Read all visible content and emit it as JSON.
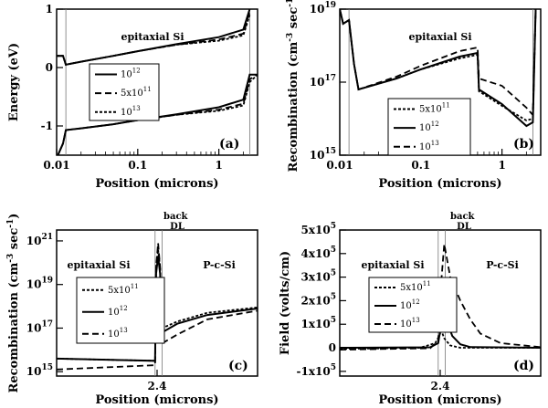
{
  "chart_data": [
    {
      "type": "line",
      "panel_label": "(a)",
      "xlabel": "Position (microns)",
      "ylabel": "Energy (eV)",
      "xscale": "log",
      "xlim": [
        0.01,
        3
      ],
      "ylim": [
        -1.5,
        1
      ],
      "x_ticks": [
        0.01,
        0.1,
        1
      ],
      "x_tick_labels": [
        "0.01",
        "0.1",
        "1"
      ],
      "y_ticks": [
        -1,
        0,
        1
      ],
      "y_tick_labels": [
        "-1",
        "0",
        "1"
      ],
      "annotations": [
        "epitaxial Si"
      ],
      "vlines": [
        0.013,
        2.4
      ],
      "legend": {
        "position": "center-left",
        "entries": [
          {
            "label_base": "10",
            "label_exp": "12",
            "style": "solid"
          },
          {
            "label_base": "5x10",
            "label_exp": "11",
            "style": "dashed"
          },
          {
            "label_base": "10",
            "label_exp": "13",
            "style": "dotted"
          }
        ]
      },
      "series": [
        {
          "name": "1e12 Ec",
          "style": "solid",
          "points": [
            [
              0.01,
              0.2
            ],
            [
              0.012,
              0.2
            ],
            [
              0.013,
              0.05
            ],
            [
              0.02,
              0.1
            ],
            [
              0.05,
              0.2
            ],
            [
              0.1,
              0.28
            ],
            [
              0.3,
              0.4
            ],
            [
              1,
              0.52
            ],
            [
              2,
              0.65
            ],
            [
              2.4,
              1.0
            ]
          ]
        },
        {
          "name": "5e11 Ec",
          "style": "dashed",
          "points": [
            [
              0.01,
              0.2
            ],
            [
              0.012,
              0.2
            ],
            [
              0.013,
              0.05
            ],
            [
              0.02,
              0.1
            ],
            [
              0.05,
              0.2
            ],
            [
              0.1,
              0.28
            ],
            [
              0.3,
              0.39
            ],
            [
              1,
              0.48
            ],
            [
              2,
              0.58
            ],
            [
              2.4,
              0.95
            ]
          ]
        },
        {
          "name": "1e13 Ec",
          "style": "dotted",
          "points": [
            [
              0.01,
              0.2
            ],
            [
              0.012,
              0.2
            ],
            [
              0.013,
              0.05
            ],
            [
              0.02,
              0.1
            ],
            [
              0.05,
              0.2
            ],
            [
              0.1,
              0.28
            ],
            [
              0.3,
              0.39
            ],
            [
              1,
              0.46
            ],
            [
              2,
              0.55
            ],
            [
              2.4,
              0.9
            ]
          ]
        },
        {
          "name": "1e12 Ev",
          "style": "solid",
          "points": [
            [
              0.01,
              -1.55
            ],
            [
              0.012,
              -1.3
            ],
            [
              0.013,
              -1.07
            ],
            [
              0.02,
              -1.04
            ],
            [
              0.05,
              -0.97
            ],
            [
              0.1,
              -0.9
            ],
            [
              0.3,
              -0.8
            ],
            [
              1,
              -0.68
            ],
            [
              2,
              -0.55
            ],
            [
              2.4,
              -0.12
            ],
            [
              3,
              -0.12
            ]
          ]
        },
        {
          "name": "5e11 Ev",
          "style": "dashed",
          "points": [
            [
              0.01,
              -1.55
            ],
            [
              0.012,
              -1.3
            ],
            [
              0.013,
              -1.07
            ],
            [
              0.02,
              -1.04
            ],
            [
              0.05,
              -0.97
            ],
            [
              0.1,
              -0.9
            ],
            [
              0.3,
              -0.81
            ],
            [
              1,
              -0.72
            ],
            [
              2,
              -0.62
            ],
            [
              2.4,
              -0.2
            ],
            [
              3,
              -0.12
            ]
          ]
        },
        {
          "name": "1e13 Ev",
          "style": "dotted",
          "points": [
            [
              0.01,
              -1.55
            ],
            [
              0.012,
              -1.3
            ],
            [
              0.013,
              -1.07
            ],
            [
              0.02,
              -1.04
            ],
            [
              0.05,
              -0.97
            ],
            [
              0.1,
              -0.9
            ],
            [
              0.3,
              -0.81
            ],
            [
              1,
              -0.74
            ],
            [
              2,
              -0.65
            ],
            [
              2.4,
              -0.25
            ],
            [
              3,
              -0.12
            ]
          ]
        }
      ]
    },
    {
      "type": "line",
      "panel_label": "(b)",
      "xlabel": "Position (microns)",
      "ylabel_base": "Recombination (cm",
      "ylabel_exp1": "-3",
      "ylabel_mid": " sec",
      "ylabel_exp2": "-1",
      "ylabel_end": ")",
      "xscale": "log",
      "yscale": "log",
      "xlim": [
        0.01,
        3
      ],
      "ylim": [
        1000000000000000.0,
        1e+19
      ],
      "x_ticks": [
        0.01,
        0.1,
        1
      ],
      "x_tick_labels": [
        "0.01",
        "0.1",
        "1"
      ],
      "y_ticks": [
        15,
        17,
        19
      ],
      "y_tick_labels": [
        {
          "base": "10",
          "exp": "15"
        },
        {
          "base": "10",
          "exp": "17"
        },
        {
          "base": "10",
          "exp": "19"
        }
      ],
      "annotations": [
        "epitaxial Si"
      ],
      "vlines": [
        0.013,
        2.4
      ],
      "legend": {
        "position": "lower-right",
        "entries": [
          {
            "label_base": "5x10",
            "label_exp": "11",
            "style": "dotted"
          },
          {
            "label_base": "10",
            "label_exp": "12",
            "style": "solid"
          },
          {
            "label_base": "10",
            "label_exp": "13",
            "style": "dashed"
          }
        ]
      },
      "series": [
        {
          "name": "1e12",
          "style": "solid",
          "points": [
            [
              0.01,
              19
            ],
            [
              0.011,
              18.6
            ],
            [
              0.013,
              18.7
            ],
            [
              0.015,
              17.5
            ],
            [
              0.017,
              16.8
            ],
            [
              0.05,
              17.1
            ],
            [
              0.1,
              17.35
            ],
            [
              0.3,
              17.7
            ],
            [
              0.5,
              17.8
            ],
            [
              0.52,
              16.8
            ],
            [
              1,
              16.4
            ],
            [
              2,
              15.8
            ],
            [
              2.4,
              15.9
            ],
            [
              2.6,
              19
            ]
          ]
        },
        {
          "name": "5e11",
          "style": "dotted",
          "points": [
            [
              0.01,
              19
            ],
            [
              0.011,
              18.6
            ],
            [
              0.013,
              18.7
            ],
            [
              0.015,
              17.5
            ],
            [
              0.017,
              16.8
            ],
            [
              0.05,
              17.1
            ],
            [
              0.1,
              17.35
            ],
            [
              0.3,
              17.65
            ],
            [
              0.5,
              17.75
            ],
            [
              0.52,
              16.75
            ],
            [
              1,
              16.35
            ],
            [
              2,
              15.95
            ],
            [
              2.4,
              16.0
            ],
            [
              2.6,
              19
            ]
          ]
        },
        {
          "name": "1e13",
          "style": "dashed",
          "points": [
            [
              0.01,
              19
            ],
            [
              0.011,
              18.6
            ],
            [
              0.013,
              18.7
            ],
            [
              0.015,
              17.5
            ],
            [
              0.017,
              16.8
            ],
            [
              0.05,
              17.15
            ],
            [
              0.1,
              17.45
            ],
            [
              0.3,
              17.85
            ],
            [
              0.5,
              17.95
            ],
            [
              0.52,
              17.1
            ],
            [
              1,
              16.9
            ],
            [
              2,
              16.3
            ],
            [
              2.4,
              16.1
            ],
            [
              2.6,
              19
            ]
          ]
        }
      ]
    },
    {
      "type": "line",
      "panel_label": "(c)",
      "xlabel": "Position (microns)",
      "ylabel_base": "Recombination (cm",
      "ylabel_exp1": "-3",
      "ylabel_mid": " sec",
      "ylabel_exp2": "-1",
      "ylabel_end": ")",
      "yscale": "log",
      "xlim": [
        2.3,
        2.5
      ],
      "ylim": [
        14.8,
        21.5
      ],
      "x_ticks": [
        2.4
      ],
      "x_tick_labels": [
        "2.4"
      ],
      "y_ticks": [
        15,
        17,
        19,
        21
      ],
      "y_tick_labels": [
        {
          "base": "10",
          "exp": "15"
        },
        {
          "base": "10",
          "exp": "17"
        },
        {
          "base": "10",
          "exp": "19"
        },
        {
          "base": "10",
          "exp": "21"
        }
      ],
      "annotations": [
        "epitaxial Si",
        "P-c-Si"
      ],
      "top_label": [
        "back",
        "DL"
      ],
      "vlines": [
        2.398,
        2.405
      ],
      "legend": {
        "position": "center-left",
        "entries": [
          {
            "label_base": "5x10",
            "label_exp": "11",
            "style": "dotted"
          },
          {
            "label_base": "10",
            "label_exp": "12",
            "style": "solid"
          },
          {
            "label_base": "10",
            "label_exp": "13",
            "style": "dashed"
          }
        ]
      },
      "series": [
        {
          "name": "1e12",
          "style": "solid",
          "points": [
            [
              2.3,
              15.6
            ],
            [
              2.398,
              15.5
            ],
            [
              2.399,
              19.5
            ],
            [
              2.401,
              20.3
            ],
            [
              2.403,
              19.5
            ],
            [
              2.405,
              16.8
            ],
            [
              2.42,
              17.2
            ],
            [
              2.45,
              17.6
            ],
            [
              2.5,
              17.9
            ]
          ]
        },
        {
          "name": "5e11",
          "style": "dotted",
          "points": [
            [
              2.3,
              15.6
            ],
            [
              2.398,
              15.5
            ],
            [
              2.399,
              19.8
            ],
            [
              2.401,
              20.6
            ],
            [
              2.403,
              19.8
            ],
            [
              2.405,
              17.0
            ],
            [
              2.42,
              17.3
            ],
            [
              2.45,
              17.7
            ],
            [
              2.5,
              17.95
            ]
          ]
        },
        {
          "name": "1e13",
          "style": "dashed",
          "points": [
            [
              2.3,
              15.1
            ],
            [
              2.398,
              15.3
            ],
            [
              2.399,
              19.8
            ],
            [
              2.401,
              20.9
            ],
            [
              2.403,
              19.8
            ],
            [
              2.405,
              16.3
            ],
            [
              2.42,
              16.7
            ],
            [
              2.45,
              17.4
            ],
            [
              2.5,
              17.8
            ]
          ]
        }
      ]
    },
    {
      "type": "line",
      "panel_label": "(d)",
      "xlabel": "Position (microns)",
      "ylabel": "Field (volts/cm)",
      "xlim": [
        2.3,
        2.5
      ],
      "ylim": [
        -120000,
        500000
      ],
      "x_ticks": [
        2.4
      ],
      "x_tick_labels": [
        "2.4"
      ],
      "y_ticks": [
        -100000,
        0,
        100000,
        200000,
        300000,
        400000,
        500000
      ],
      "y_tick_labels": [
        {
          "base": "-1x10",
          "exp": "5"
        },
        {
          "base": "0",
          "exp": ""
        },
        {
          "base": "1x10",
          "exp": "5"
        },
        {
          "base": "2x10",
          "exp": "5"
        },
        {
          "base": "3x10",
          "exp": "5"
        },
        {
          "base": "4x10",
          "exp": "5"
        },
        {
          "base": "5x10",
          "exp": "5"
        }
      ],
      "annotations": [
        "epitaxial Si",
        "P-c-Si"
      ],
      "top_label": [
        "back",
        "DL"
      ],
      "vlines": [
        2.398,
        2.405
      ],
      "legend": {
        "position": "center-left",
        "entries": [
          {
            "label_base": "5x10",
            "label_exp": "11",
            "style": "dotted"
          },
          {
            "label_base": "10",
            "label_exp": "12",
            "style": "solid"
          },
          {
            "label_base": "10",
            "label_exp": "13",
            "style": "dashed"
          }
        ]
      },
      "series": [
        {
          "name": "1e12",
          "style": "solid",
          "points": [
            [
              2.3,
              0
            ],
            [
              2.39,
              2000
            ],
            [
              2.398,
              20000
            ],
            [
              2.401,
              100000
            ],
            [
              2.403,
              185000
            ],
            [
              2.406,
              120000
            ],
            [
              2.412,
              50000
            ],
            [
              2.42,
              15000
            ],
            [
              2.43,
              3000
            ],
            [
              2.5,
              0
            ]
          ]
        },
        {
          "name": "5e11",
          "style": "dotted",
          "points": [
            [
              2.3,
              -5000
            ],
            [
              2.38,
              0
            ],
            [
              2.395,
              20000
            ],
            [
              2.399,
              50000
            ],
            [
              2.401,
              75000
            ],
            [
              2.404,
              40000
            ],
            [
              2.41,
              10000
            ],
            [
              2.42,
              0
            ],
            [
              2.5,
              0
            ]
          ]
        },
        {
          "name": "1e13",
          "style": "dashed",
          "points": [
            [
              2.3,
              -8000
            ],
            [
              2.39,
              -2000
            ],
            [
              2.398,
              30000
            ],
            [
              2.401,
              280000
            ],
            [
              2.404,
              440000
            ],
            [
              2.41,
              300000
            ],
            [
              2.42,
              200000
            ],
            [
              2.43,
              120000
            ],
            [
              2.44,
              60000
            ],
            [
              2.46,
              20000
            ],
            [
              2.5,
              3000
            ]
          ]
        }
      ]
    }
  ]
}
